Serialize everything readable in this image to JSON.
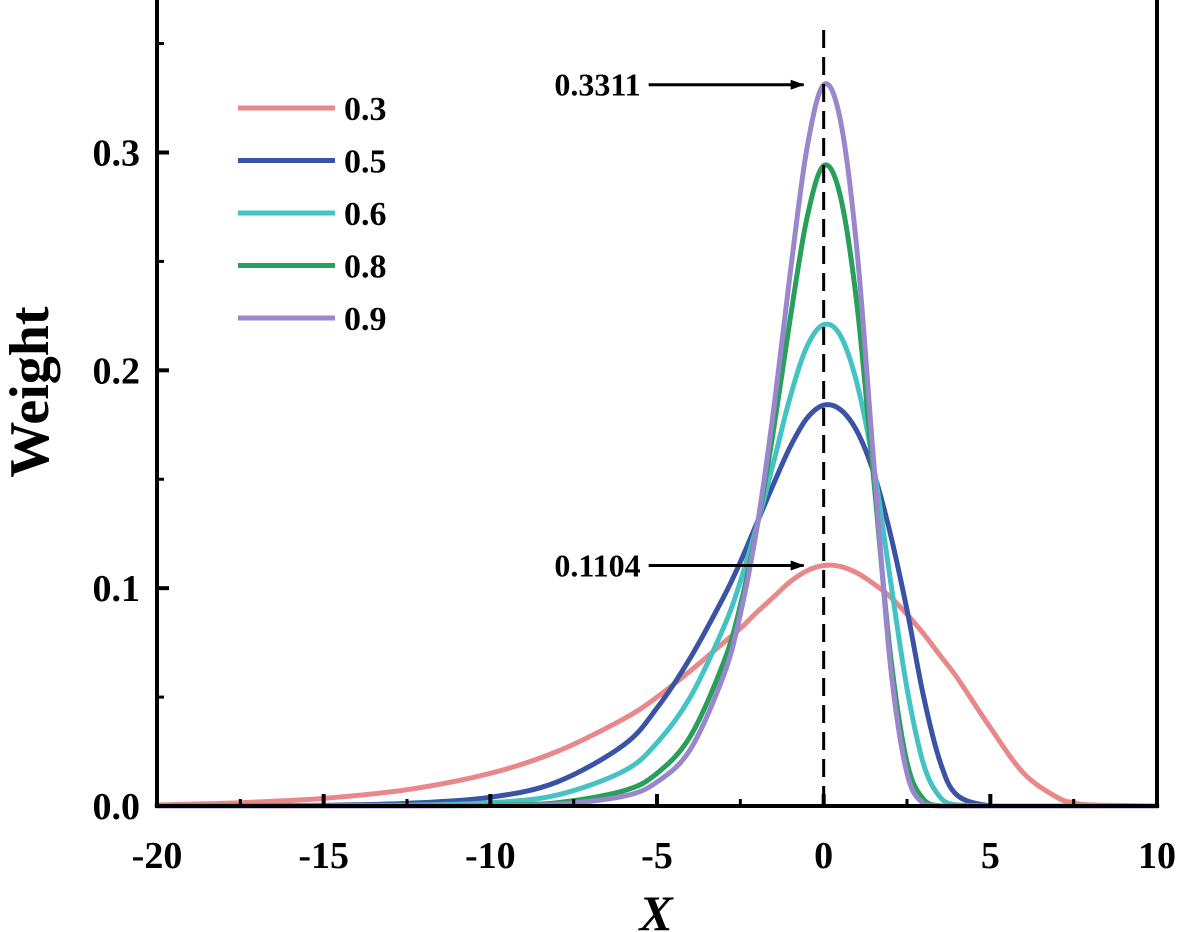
{
  "chart_data": {
    "type": "line",
    "xlabel": "X",
    "ylabel": "Weight",
    "xlim": [
      -20,
      10
    ],
    "ylim": [
      0,
      0.37
    ],
    "x_ticks": [
      -20,
      -15,
      -10,
      -5,
      0,
      5,
      10
    ],
    "x_tick_labels": [
      "-20",
      "-15",
      "-10",
      "-5",
      "0",
      "5",
      "10"
    ],
    "y_ticks": [
      0,
      0.1,
      0.2,
      0.3
    ],
    "y_tick_labels": [
      "0.0",
      "0.1",
      "0.2",
      "0.3"
    ],
    "grid": false,
    "legend_position": "top-left",
    "reference_line": {
      "x": 0,
      "style": "dashed"
    },
    "x": [
      -20,
      -17.5,
      -15,
      -12.5,
      -10,
      -8,
      -6,
      -5,
      -4,
      -3,
      -2.5,
      -2,
      -1.5,
      -1,
      -0.5,
      0,
      0.5,
      1,
      1.5,
      2,
      2.5,
      3,
      3.5,
      4,
      5,
      6,
      7,
      7.5,
      8,
      10
    ],
    "series": [
      {
        "name": "0.3",
        "color": "#e8888a",
        "values": [
          0.0005,
          0.0015,
          0.0035,
          0.0075,
          0.015,
          0.025,
          0.04,
          0.05,
          0.062,
          0.075,
          0.0815,
          0.089,
          0.096,
          0.103,
          0.108,
          0.1104,
          0.11,
          0.107,
          0.102,
          0.096,
          0.088,
          0.079,
          0.069,
          0.059,
          0.036,
          0.015,
          0.004,
          0.0015,
          0.0005,
          0.0
        ]
      },
      {
        "name": "0.5",
        "color": "#3a53a4",
        "values": [
          0.0,
          0.0001,
          0.0003,
          0.0012,
          0.004,
          0.011,
          0.028,
          0.045,
          0.068,
          0.096,
          0.112,
          0.13,
          0.148,
          0.165,
          0.178,
          0.184,
          0.182,
          0.172,
          0.153,
          0.125,
          0.09,
          0.05,
          0.02,
          0.005,
          0.0,
          0.0,
          0.0,
          0.0,
          0.0,
          0.0
        ]
      },
      {
        "name": "0.6",
        "color": "#45c3c4",
        "values": [
          0.0,
          0.0,
          0.0001,
          0.0004,
          0.0015,
          0.005,
          0.016,
          0.029,
          0.05,
          0.082,
          0.103,
          0.129,
          0.158,
          0.188,
          0.211,
          0.221,
          0.216,
          0.194,
          0.156,
          0.104,
          0.054,
          0.019,
          0.004,
          0.0005,
          0.0,
          0.0,
          0.0,
          0.0,
          0.0,
          0.0
        ]
      },
      {
        "name": "0.8",
        "color": "#28a05a",
        "values": [
          0.0,
          0.0,
          0.0,
          0.0001,
          0.0003,
          0.0015,
          0.007,
          0.015,
          0.032,
          0.066,
          0.092,
          0.128,
          0.173,
          0.224,
          0.27,
          0.294,
          0.28,
          0.23,
          0.15,
          0.07,
          0.02,
          0.003,
          0.0,
          0.0,
          0.0,
          0.0,
          0.0,
          0.0,
          0.0,
          0.0
        ]
      },
      {
        "name": "0.9",
        "color": "#9a86cc",
        "values": [
          0.0,
          0.0,
          0.0,
          0.0,
          0.0002,
          0.0008,
          0.0045,
          0.011,
          0.026,
          0.06,
          0.088,
          0.128,
          0.182,
          0.245,
          0.302,
          0.3311,
          0.315,
          0.255,
          0.158,
          0.065,
          0.015,
          0.001,
          0.0,
          0.0,
          0.0,
          0.0,
          0.0,
          0.0,
          0.0,
          0.0
        ]
      }
    ],
    "annotations": [
      {
        "text": "0.3311",
        "x": 0,
        "y": 0.3311
      },
      {
        "text": "0.1104",
        "x": 0,
        "y": 0.1104
      }
    ]
  }
}
